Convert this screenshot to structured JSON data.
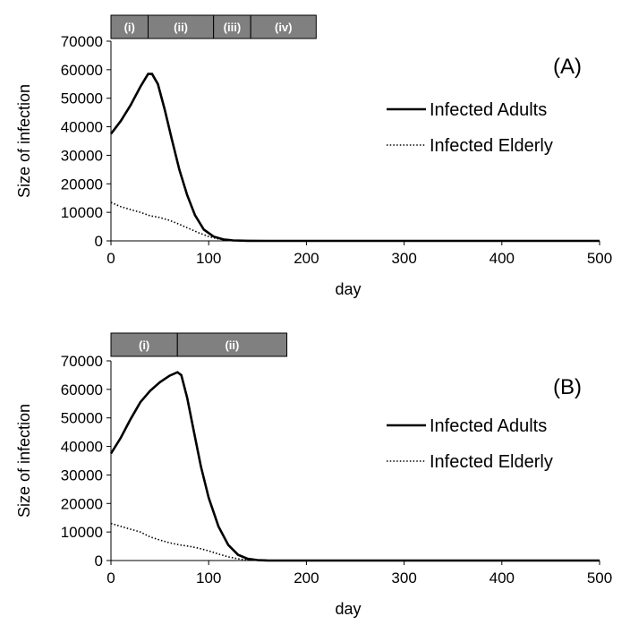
{
  "chart_data": [
    {
      "type": "line",
      "panel_label": "(A)",
      "xlabel": "day",
      "ylabel": "Size of infection",
      "xlim": [
        0,
        500
      ],
      "ylim": [
        0,
        70000
      ],
      "xticks": [
        0,
        100,
        200,
        300,
        400,
        500
      ],
      "yticks": [
        0,
        10000,
        20000,
        30000,
        40000,
        50000,
        60000,
        70000
      ],
      "phases": [
        {
          "label": "(i)",
          "start": 0,
          "end": 38
        },
        {
          "label": "(ii)",
          "start": 38,
          "end": 105
        },
        {
          "label": "(iii)",
          "start": 105,
          "end": 143
        },
        {
          "label": "(iv)",
          "start": 143,
          "end": 210
        }
      ],
      "series": [
        {
          "name": "Infected Adults",
          "style": "solid",
          "x": [
            0,
            10,
            20,
            30,
            38,
            42,
            48,
            55,
            62,
            70,
            78,
            86,
            95,
            105,
            115,
            125,
            140,
            160,
            200,
            300,
            400,
            500
          ],
          "y": [
            37500,
            42000,
            47500,
            54000,
            58500,
            58500,
            55000,
            46000,
            36000,
            25000,
            16000,
            9000,
            4000,
            1500,
            500,
            150,
            30,
            0,
            0,
            0,
            0,
            0
          ]
        },
        {
          "name": "Infected Elderly",
          "style": "dotted",
          "x": [
            0,
            10,
            20,
            30,
            40,
            50,
            60,
            70,
            80,
            90,
            100,
            110,
            120,
            130,
            140,
            160,
            200,
            300,
            400,
            500
          ],
          "y": [
            13500,
            12000,
            11000,
            10000,
            8800,
            8200,
            7200,
            5800,
            4300,
            2800,
            1500,
            700,
            250,
            80,
            20,
            0,
            0,
            0,
            0,
            0
          ]
        }
      ]
    },
    {
      "type": "line",
      "panel_label": "(B)",
      "xlabel": "day",
      "ylabel": "Size of infection",
      "xlim": [
        0,
        500
      ],
      "ylim": [
        0,
        70000
      ],
      "xticks": [
        0,
        100,
        200,
        300,
        400,
        500
      ],
      "yticks": [
        0,
        10000,
        20000,
        30000,
        40000,
        50000,
        60000,
        70000
      ],
      "phases": [
        {
          "label": "(i)",
          "start": 0,
          "end": 68
        },
        {
          "label": "(ii)",
          "start": 68,
          "end": 180
        }
      ],
      "series": [
        {
          "name": "Infected Adults",
          "style": "solid",
          "x": [
            0,
            10,
            20,
            30,
            40,
            50,
            60,
            68,
            72,
            78,
            85,
            92,
            100,
            110,
            120,
            130,
            140,
            150,
            160,
            180,
            200,
            300,
            400,
            500
          ],
          "y": [
            37500,
            43000,
            49500,
            55500,
            59500,
            62500,
            64800,
            66000,
            65000,
            57000,
            45000,
            33000,
            22000,
            12000,
            5500,
            2000,
            600,
            150,
            30,
            0,
            0,
            0,
            0,
            0
          ]
        },
        {
          "name": "Infected Elderly",
          "style": "dotted",
          "x": [
            0,
            10,
            20,
            30,
            40,
            50,
            60,
            70,
            80,
            90,
            100,
            110,
            120,
            130,
            140,
            150,
            170,
            200,
            300,
            400,
            500
          ],
          "y": [
            13000,
            12000,
            11000,
            10000,
            8300,
            7200,
            6200,
            5500,
            5000,
            4300,
            3400,
            2300,
            1300,
            600,
            200,
            60,
            0,
            0,
            0,
            0,
            0
          ]
        }
      ]
    }
  ]
}
